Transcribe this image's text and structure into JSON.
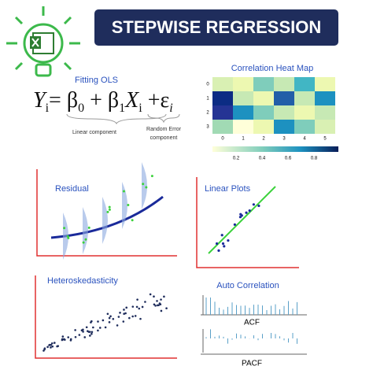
{
  "header": {
    "title": "STEPWISE REGRESSION"
  },
  "ols": {
    "label": "Fitting OLS",
    "formula": [
      "Y",
      "i",
      "= β",
      "0",
      " + β",
      "1",
      "X",
      "i",
      " +ε",
      "i"
    ],
    "linear_note": "Linear component",
    "error_note": [
      "Random Error",
      "component"
    ]
  },
  "heatmap": {
    "title": "Correlation Heat Map",
    "x_labels": [
      "0",
      "1",
      "2",
      "3",
      "4",
      "5"
    ],
    "y_labels": [
      "0",
      "1",
      "2",
      "3"
    ],
    "colorbar_labels": [
      "0.2",
      "0.4",
      "0.6",
      "0.8"
    ]
  },
  "panels": {
    "residual": "Residual",
    "linear": "Linear Plots",
    "hetero": "Heteroskedasticity",
    "auto": "Auto Correlation",
    "acf": "ACF",
    "pacf": "PACF"
  }
}
